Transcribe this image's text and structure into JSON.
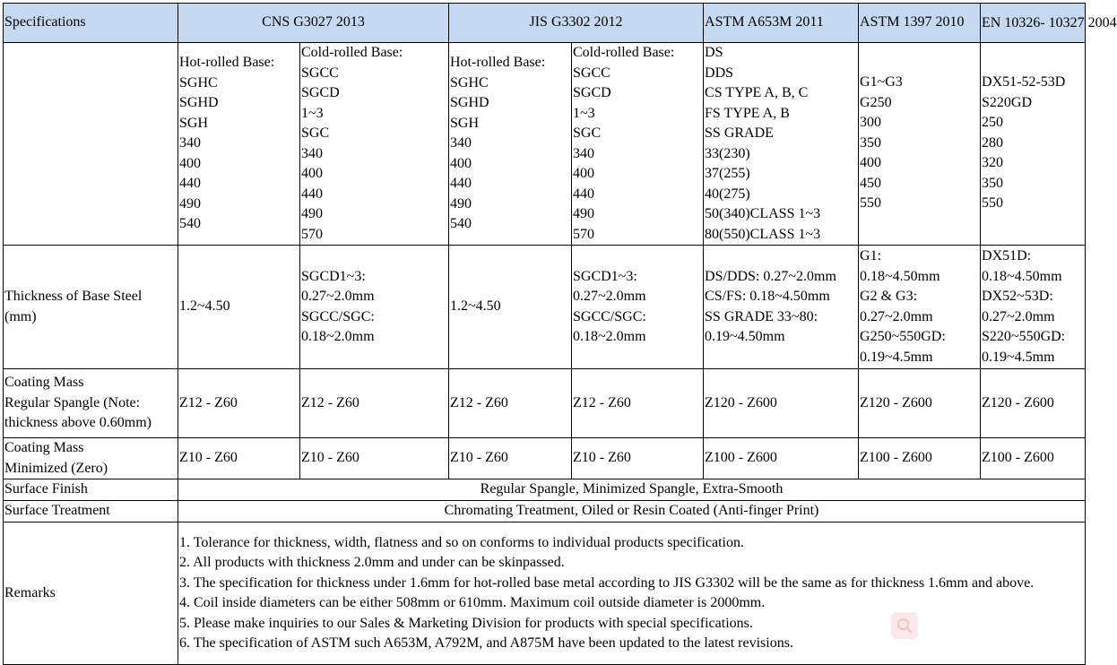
{
  "header": {
    "specifications": "Specifications",
    "cns": "CNS G3027 2013",
    "jis": "JIS G3302 2012",
    "astm_a653m": "ASTM A653M 2011",
    "astm_1397": "ASTM 1397 2010",
    "en": "EN 10326-\n10327 2004"
  },
  "grades": {
    "cns_hot": "Hot-rolled Base:\nSGHC\nSGHD\nSGH\n340\n400\n440\n490\n540",
    "cns_cold": "Cold-rolled Base:\nSGCC\nSGCD\n1~3\nSGC\n340\n400\n440\n490\n570",
    "jis_hot": "Hot-rolled Base:\nSGHC\nSGHD\nSGH\n340\n400\n440\n490\n540",
    "jis_cold": "Cold-rolled Base:\nSGCC\nSGCD\n1~3\nSGC\n340\n400\n440\n490\n570",
    "astm_a653m": "DS\nDDS\nCS TYPE A, B, C\nFS TYPE A, B\nSS GRADE\n33(230)\n37(255)\n40(275)\n50(340)CLASS 1~3\n80(550)CLASS 1~3",
    "astm_1397": "G1~G3\nG250\n300\n350\n400\n450\n550",
    "en": "DX51-52-53D\nS220GD\n250\n280\n320\n350\n550"
  },
  "thickness": {
    "label": "Thickness of Base Steel\n(mm)",
    "cns_hot": "1.2~4.50",
    "cns_cold": "SGCD1~3:\n0.27~2.0mm\nSGCC/SGC:\n0.18~2.0mm",
    "jis_hot": "1.2~4.50",
    "jis_cold": "SGCD1~3:\n0.27~2.0mm\nSGCC/SGC:\n0.18~2.0mm",
    "astm_a653m": "DS/DDS: 0.27~2.0mm\nCS/FS: 0.18~4.50mm\nSS GRADE 33~80:\n0.19~4.50mm",
    "astm_1397": "G1:\n0.18~4.50mm\nG2 & G3:\n0.27~2.0mm\nG250~550GD:\n0.19~4.5mm",
    "en": "DX51D:\n0.18~4.50mm\nDX52~53D:\n0.27~2.0mm\nS220~550GD:\n0.19~4.5mm"
  },
  "coating_regular": {
    "label": "Coating Mass\nRegular Spangle (Note:\nthickness above 0.60mm)",
    "cns_hot": "Z12 - Z60",
    "cns_cold": "Z12 - Z60",
    "jis_hot": "Z12 - Z60",
    "jis_cold": "Z12 - Z60",
    "astm_a653m": "Z120 - Z600",
    "astm_1397": "Z120 - Z600",
    "en": "Z120 - Z600"
  },
  "coating_minimized": {
    "label": "Coating Mass\nMinimized (Zero)",
    "cns_hot": "Z10 - Z60",
    "cns_cold": "Z10 - Z60",
    "jis_hot": "Z10 - Z60",
    "jis_cold": "Z10 - Z60",
    "astm_a653m": "Z100 - Z600",
    "astm_1397": "Z100 - Z600",
    "en": "Z100 - Z600"
  },
  "surface_finish": {
    "label": "Surface Finish",
    "value": "Regular Spangle, Minimized Spangle, Extra-Smooth"
  },
  "surface_treatment": {
    "label": "Surface Treatment",
    "value": "Chromating Treatment, Oiled or Resin Coated (Anti-finger Print)"
  },
  "remarks": {
    "label": "Remarks",
    "items": [
      "1. Tolerance for thickness, width, flatness and so on conforms to individual products specification.",
      "2. All products with thickness 2.0mm and under can be skinpassed.",
      "3. The specification for thickness under 1.6mm for hot-rolled base metal according to JIS G3302 will be the same as for thickness 1.6mm and above.",
      "4. Coil inside diameters can be either 508mm or 610mm. Maximum coil outside diameter is 2000mm.",
      "5. Please make inquiries to our Sales & Marketing Division for products with special specifications.",
      "6. The specification of ASTM such A653M, A792M, and A875M have been updated to the latest revisions."
    ]
  },
  "icons": {
    "overlay": "search-icon"
  },
  "colors": {
    "header_bg": "#c5d9f1",
    "overlay_bg": "#fbe4e4",
    "overlay_icon": "#f4b8b8"
  }
}
